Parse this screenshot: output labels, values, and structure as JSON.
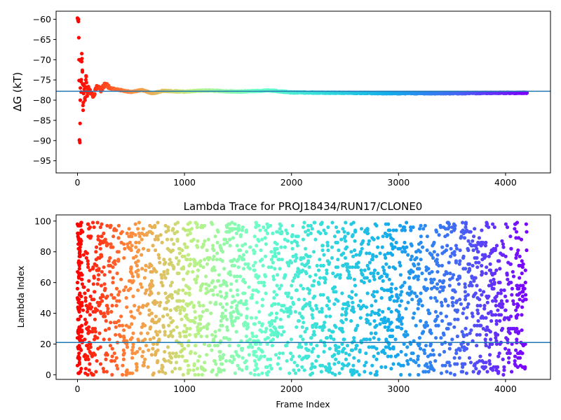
{
  "chart_data": [
    {
      "type": "scatter",
      "title": "",
      "xlabel": "",
      "ylabel": "ΔG (kT)",
      "xlim": [
        -200,
        4420
      ],
      "ylim": [
        -98,
        -58
      ],
      "xticks": [
        0,
        1000,
        2000,
        3000,
        4000
      ],
      "yticks": [
        -60,
        -65,
        -70,
        -75,
        -80,
        -85,
        -90,
        -95
      ],
      "colormap": "rainbow (red → violet, reversed by frame index)",
      "reference_line": {
        "y": -77.8,
        "color": "#1f77b4"
      },
      "series": [
        {
          "x": [
            10,
            14,
            18,
            22,
            26,
            30,
            34,
            40,
            46,
            52,
            60,
            70,
            80,
            90,
            100,
            120,
            150,
            180,
            220,
            260,
            300,
            400,
            500,
            600,
            700,
            800,
            1000,
            1200,
            1500,
            1800,
            2000,
            2500,
            3000,
            3500,
            4000,
            4200
          ],
          "y": [
            -60,
            -70,
            -90,
            -90.5,
            -80,
            -70,
            -78,
            -68.5,
            -73,
            -82.5,
            -76,
            -80,
            -74,
            -79,
            -77,
            -78,
            -79,
            -76.5,
            -77.5,
            -76,
            -77,
            -77.5,
            -78,
            -77.5,
            -78.3,
            -77.7,
            -77.9,
            -77.6,
            -77.9,
            -77.6,
            -78.1,
            -78.2,
            -78.3,
            -78.3,
            -78.2,
            -78.2
          ]
        }
      ]
    },
    {
      "type": "scatter",
      "title": "Lambda Trace for PROJ18434/RUN17/CLONE0",
      "xlabel": "Frame Index",
      "ylabel": "Lambda Index",
      "xlim": [
        -200,
        4420
      ],
      "ylim": [
        -3,
        104
      ],
      "xticks": [
        0,
        1000,
        2000,
        3000,
        4000
      ],
      "yticks": [
        0,
        20,
        40,
        60,
        80,
        100
      ],
      "colormap": "rainbow (red → violet, reversed by frame index)",
      "reference_line": {
        "y": 21,
        "color": "#1f77b4"
      },
      "x_range_points": [
        0,
        4200
      ],
      "y_range_points": [
        0,
        99
      ],
      "n_points": 4200
    }
  ]
}
